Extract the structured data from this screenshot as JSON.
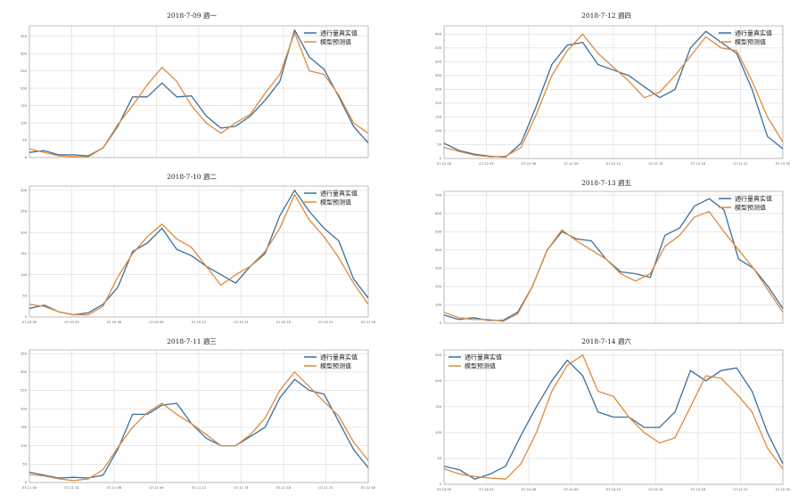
{
  "chart_data": [
    {
      "type": "line",
      "title": "2018-7-09 週一",
      "legend": "top-right",
      "grid": true,
      "ylim": [
        0,
        380
      ],
      "yticks": [
        "0",
        "50",
        "100",
        "150",
        "200",
        "250",
        "300",
        "350"
      ],
      "xticks": [],
      "series": [
        {
          "name": "通行量真实值",
          "color": "#3a6f9c",
          "values": [
            15,
            20,
            8,
            8,
            5,
            28,
            90,
            175,
            175,
            215,
            175,
            178,
            120,
            85,
            90,
            120,
            165,
            220,
            368,
            290,
            255,
            175,
            90,
            42
          ]
        },
        {
          "name": "模型预测值",
          "color": "#e08a3a",
          "values": [
            25,
            15,
            5,
            3,
            2,
            28,
            95,
            150,
            210,
            260,
            220,
            150,
            100,
            70,
            100,
            125,
            185,
            240,
            360,
            250,
            240,
            180,
            100,
            70
          ]
        }
      ]
    },
    {
      "type": "line",
      "title": "2018-7-12 週四",
      "legend": "top-right",
      "grid": true,
      "ylim": [
        0,
        480
      ],
      "yticks": [
        "0",
        "50",
        "100",
        "150",
        "200",
        "250",
        "300",
        "350",
        "400",
        "450"
      ],
      "xticks": [
        "07-12 00",
        "07-12 03",
        "07-12 06",
        "07-12 09",
        "07-12 12",
        "07-12 15",
        "07-12 18",
        "07-12 21",
        "07-13 00"
      ],
      "series": [
        {
          "name": "通行量真实值",
          "color": "#3a6f9c",
          "values": [
            55,
            28,
            15,
            8,
            5,
            55,
            190,
            340,
            410,
            420,
            340,
            320,
            300,
            260,
            220,
            250,
            400,
            460,
            420,
            380,
            250,
            80,
            35
          ]
        },
        {
          "name": "模型预测值",
          "color": "#e08a3a",
          "values": [
            40,
            25,
            12,
            6,
            8,
            40,
            160,
            300,
            390,
            450,
            380,
            330,
            280,
            220,
            240,
            300,
            370,
            440,
            400,
            390,
            280,
            150,
            60
          ]
        }
      ]
    },
    {
      "type": "line",
      "title": "2018-7-10 週二",
      "legend": "top-right",
      "grid": true,
      "ylim": [
        0,
        310
      ],
      "yticks": [
        "0",
        "50",
        "100",
        "150",
        "200",
        "250",
        "300"
      ],
      "xticks": [
        "07-10 00",
        "07-10 03",
        "07-10 06",
        "07-10 09",
        "07-10 12",
        "07-10 15",
        "07-10 18",
        "07-10 21",
        "07-11 00"
      ],
      "series": [
        {
          "name": "通行量真实值",
          "color": "#3a6f9c",
          "values": [
            20,
            28,
            12,
            5,
            10,
            30,
            70,
            155,
            175,
            210,
            160,
            145,
            120,
            100,
            80,
            120,
            150,
            240,
            300,
            250,
            210,
            180,
            90,
            45
          ]
        },
        {
          "name": "模型预测值",
          "color": "#e08a3a",
          "values": [
            30,
            25,
            12,
            5,
            5,
            25,
            95,
            150,
            190,
            220,
            185,
            165,
            120,
            75,
            100,
            120,
            155,
            210,
            290,
            230,
            190,
            140,
            80,
            30
          ]
        }
      ]
    },
    {
      "type": "line",
      "title": "2018-7-13 週五",
      "legend": "top-right",
      "grid": true,
      "ylim": [
        0,
        720
      ],
      "yticks": [
        "0",
        "100",
        "200",
        "300",
        "400",
        "500",
        "600",
        "700"
      ],
      "xticks": [],
      "series": [
        {
          "name": "通行量真实值",
          "color": "#3a6f9c",
          "values": [
            45,
            20,
            30,
            15,
            15,
            60,
            200,
            400,
            500,
            460,
            450,
            350,
            280,
            270,
            250,
            480,
            520,
            640,
            680,
            620,
            350,
            300,
            200,
            80
          ]
        },
        {
          "name": "模型预测值",
          "color": "#e08a3a",
          "values": [
            60,
            30,
            20,
            20,
            10,
            50,
            200,
            400,
            510,
            450,
            400,
            350,
            270,
            230,
            270,
            420,
            480,
            580,
            610,
            500,
            400,
            300,
            180,
            60
          ]
        }
      ]
    },
    {
      "type": "line",
      "title": "2018-7-11 週三",
      "legend": "top-right",
      "grid": true,
      "ylim": [
        0,
        360
      ],
      "yticks": [
        "0",
        "50",
        "100",
        "150",
        "200",
        "250",
        "300",
        "350"
      ],
      "xticks": [
        "07-11 00",
        "07-11 03",
        "07-11 06",
        "07-11 09",
        "07-11 12",
        "07-11 15",
        "07-11 18",
        "07-11 21",
        "07-12 00"
      ],
      "series": [
        {
          "name": "通行量真实值",
          "color": "#3a6f9c",
          "values": [
            28,
            20,
            12,
            14,
            12,
            20,
            90,
            185,
            185,
            210,
            215,
            160,
            120,
            100,
            100,
            125,
            150,
            230,
            280,
            250,
            240,
            165,
            90,
            40
          ]
        },
        {
          "name": "模型预测值",
          "color": "#e08a3a",
          "values": [
            22,
            18,
            10,
            5,
            10,
            35,
            95,
            150,
            190,
            215,
            185,
            160,
            130,
            100,
            100,
            130,
            175,
            250,
            300,
            260,
            220,
            180,
            110,
            60
          ]
        }
      ]
    },
    {
      "type": "line",
      "title": "2018-7-14 週六",
      "legend": "top-left",
      "grid": true,
      "ylim": [
        0,
        260
      ],
      "yticks": [
        "0",
        "50",
        "100",
        "150",
        "200",
        "250"
      ],
      "xticks": [
        "07-14 00",
        "07-14 03",
        "07-14 06",
        "07-14 09",
        "07-14 12",
        "07-14 15",
        "07-14 18",
        "07-14 21",
        "07-15 00"
      ],
      "series": [
        {
          "name": "通行量真实值",
          "color": "#3a6f9c",
          "values": [
            35,
            28,
            10,
            20,
            35,
            95,
            150,
            200,
            240,
            210,
            140,
            130,
            130,
            110,
            110,
            140,
            220,
            200,
            220,
            225,
            180,
            100,
            40
          ]
        },
        {
          "name": "模型预测值",
          "color": "#e08a3a",
          "values": [
            30,
            20,
            15,
            12,
            10,
            40,
            100,
            180,
            230,
            250,
            180,
            170,
            130,
            100,
            80,
            90,
            150,
            210,
            205,
            175,
            140,
            70,
            30
          ]
        }
      ]
    }
  ]
}
